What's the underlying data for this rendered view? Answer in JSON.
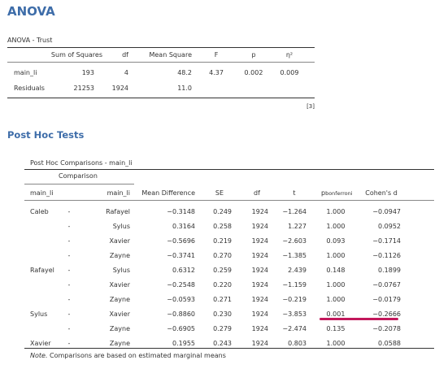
{
  "anova": {
    "heading": "ANOVA",
    "caption": "ANOVA - Trust",
    "headers": [
      "Sum of Squares",
      "df",
      "Mean Square",
      "F",
      "p",
      "η²"
    ],
    "rows": [
      {
        "label": "main_li",
        "ss": "193",
        "df": "4",
        "ms": "48.2",
        "f": "4.37",
        "p": "0.002",
        "eta": "0.009"
      },
      {
        "label": "Residuals",
        "ss": "21253",
        "df": "1924",
        "ms": "11.0",
        "f": "",
        "p": "",
        "eta": ""
      }
    ],
    "footnote": "[3]"
  },
  "posthoc": {
    "heading": "Post Hoc Tests",
    "caption": "Post Hoc Comparisons - main_li",
    "group_header": "Comparison",
    "headers": {
      "col1": "main_li",
      "col2": "main_li",
      "md": "Mean Difference",
      "se": "SE",
      "df": "df",
      "t": "t",
      "p_prefix": "p",
      "p_sub": "bonferroni",
      "d": "Cohen's d"
    },
    "rows": [
      {
        "g1": "Caleb",
        "dash": "-",
        "g2": "Rafayel",
        "md": "−0.3148",
        "se": "0.249",
        "df": "1924",
        "t": "−1.264",
        "p": "1.000",
        "d": "−0.0947"
      },
      {
        "g1": "",
        "dash": "-",
        "g2": "Sylus",
        "md": "0.3164",
        "se": "0.258",
        "df": "1924",
        "t": "1.227",
        "p": "1.000",
        "d": "0.0952"
      },
      {
        "g1": "",
        "dash": "-",
        "g2": "Xavier",
        "md": "−0.5696",
        "se": "0.219",
        "df": "1924",
        "t": "−2.603",
        "p": "0.093",
        "d": "−0.1714"
      },
      {
        "g1": "",
        "dash": "-",
        "g2": "Zayne",
        "md": "−0.3741",
        "se": "0.270",
        "df": "1924",
        "t": "−1.385",
        "p": "1.000",
        "d": "−0.1126"
      },
      {
        "g1": "Rafayel",
        "dash": "-",
        "g2": "Sylus",
        "md": "0.6312",
        "se": "0.259",
        "df": "1924",
        "t": "2.439",
        "p": "0.148",
        "d": "0.1899"
      },
      {
        "g1": "",
        "dash": "-",
        "g2": "Xavier",
        "md": "−0.2548",
        "se": "0.220",
        "df": "1924",
        "t": "−1.159",
        "p": "1.000",
        "d": "−0.0767"
      },
      {
        "g1": "",
        "dash": "-",
        "g2": "Zayne",
        "md": "−0.0593",
        "se": "0.271",
        "df": "1924",
        "t": "−0.219",
        "p": "1.000",
        "d": "−0.0179"
      },
      {
        "g1": "Sylus",
        "dash": "-",
        "g2": "Xavier",
        "md": "−0.8860",
        "se": "0.230",
        "df": "1924",
        "t": "−3.853",
        "p": "0.001",
        "d": "−0.2666"
      },
      {
        "g1": "",
        "dash": "-",
        "g2": "Zayne",
        "md": "−0.6905",
        "se": "0.279",
        "df": "1924",
        "t": "−2.474",
        "p": "0.135",
        "d": "−0.2078"
      },
      {
        "g1": "Xavier",
        "dash": "-",
        "g2": "Zayne",
        "md": "0.1955",
        "se": "0.243",
        "df": "1924",
        "t": "0.803",
        "p": "1.000",
        "d": "0.0588"
      }
    ],
    "note_label": "Note.",
    "note_text": " Comparisons are based on estimated marginal means"
  },
  "colors": {
    "heading": "#3e6da9",
    "underline_mark": "#c2185b"
  }
}
